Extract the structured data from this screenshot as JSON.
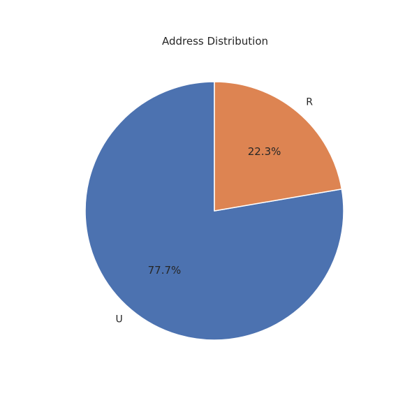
{
  "chart_data": {
    "type": "pie",
    "title": "Address Distribution",
    "categories": [
      "U",
      "R"
    ],
    "values": [
      77.7,
      22.3
    ],
    "labels": [
      "77.7%",
      "22.3%"
    ],
    "colors": [
      "#4c72b0",
      "#dd8452"
    ],
    "start_angle_deg": 90,
    "direction": "counterclockwise"
  }
}
